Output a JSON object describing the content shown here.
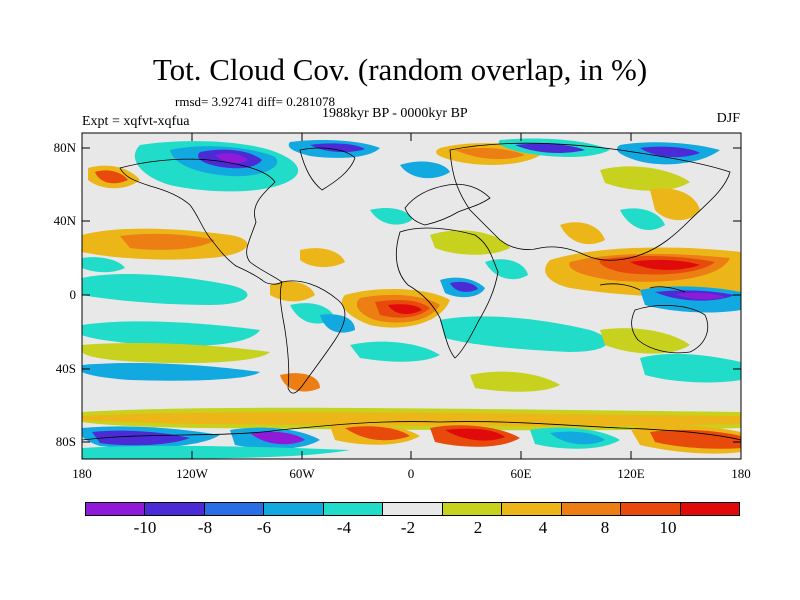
{
  "title": "Tot. Cloud Cov. (random overlap, in %)",
  "stats": "rmsd= 3.92741 diff= 0.281078",
  "experiment": "Expt = xqfvt-xqfua",
  "period": "1988kyr BP - 0000kyr BP",
  "season": "DJF",
  "lat_labels": [
    "80N",
    "40N",
    "0",
    "40S",
    "80S"
  ],
  "lon_labels": [
    "180",
    "120W",
    "60W",
    "0",
    "60E",
    "120E",
    "180"
  ],
  "colorbar": {
    "labels": [
      "-10",
      "-8",
      "-6",
      "-4",
      "-2",
      "2",
      "4",
      "8",
      "10"
    ],
    "colors": [
      "#8f1bd9",
      "#4a2bd6",
      "#2a6ee6",
      "#12a8e0",
      "#20dcc8",
      "#e8e8e8",
      "#c8d21e",
      "#ecb619",
      "#ec7e14",
      "#e84a0c",
      "#e00a0a"
    ]
  },
  "colors": {
    "land_line": "#000000",
    "background": "#e8e8e8"
  }
}
